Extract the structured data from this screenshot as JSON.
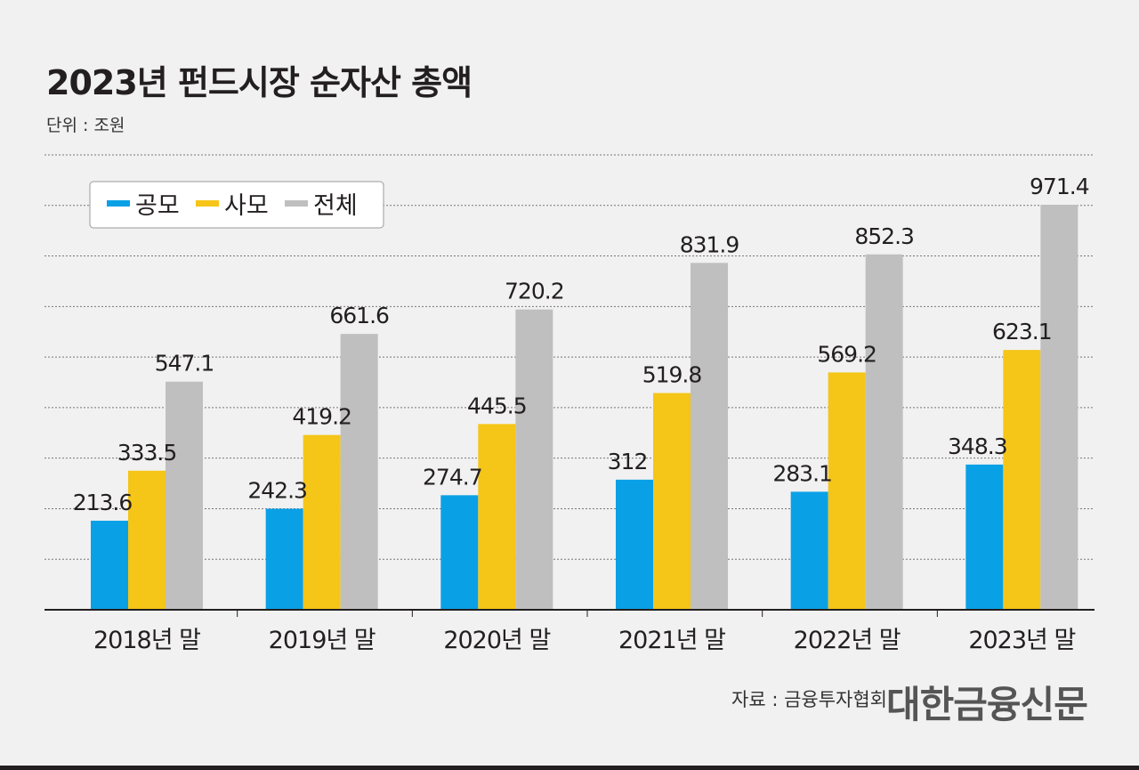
{
  "header": {
    "title": "2023년 펀드시장 순자산 총액",
    "unit": "단위 : 조원"
  },
  "footer": {
    "source": "자료 : 금융투자협회",
    "logo": "대한금융신문"
  },
  "colors": {
    "public": "#0aa0e6",
    "private": "#f5c518",
    "total": "#bfbfbf",
    "grid": "#777777",
    "axis": "#231f20"
  },
  "chart_data": {
    "type": "bar",
    "title": "2023년 펀드시장 순자산 총액",
    "xlabel": "",
    "ylabel": "",
    "ylim": [
      0,
      1000
    ],
    "grid": true,
    "legend": "top-left",
    "categories": [
      "2018년 말",
      "2019년 말",
      "2020년 말",
      "2021년 말",
      "2022년 말",
      "2023년 말"
    ],
    "series": [
      {
        "name": "공모",
        "color": "#0aa0e6",
        "values": [
          213.6,
          242.3,
          274.7,
          312,
          283.1,
          348.3
        ]
      },
      {
        "name": "사모",
        "color": "#f5c518",
        "values": [
          333.5,
          419.2,
          445.5,
          519.8,
          569.2,
          623.1
        ]
      },
      {
        "name": "전체",
        "color": "#bfbfbf",
        "values": [
          547.1,
          661.6,
          720.2,
          831.9,
          852.3,
          971.4
        ]
      }
    ]
  }
}
